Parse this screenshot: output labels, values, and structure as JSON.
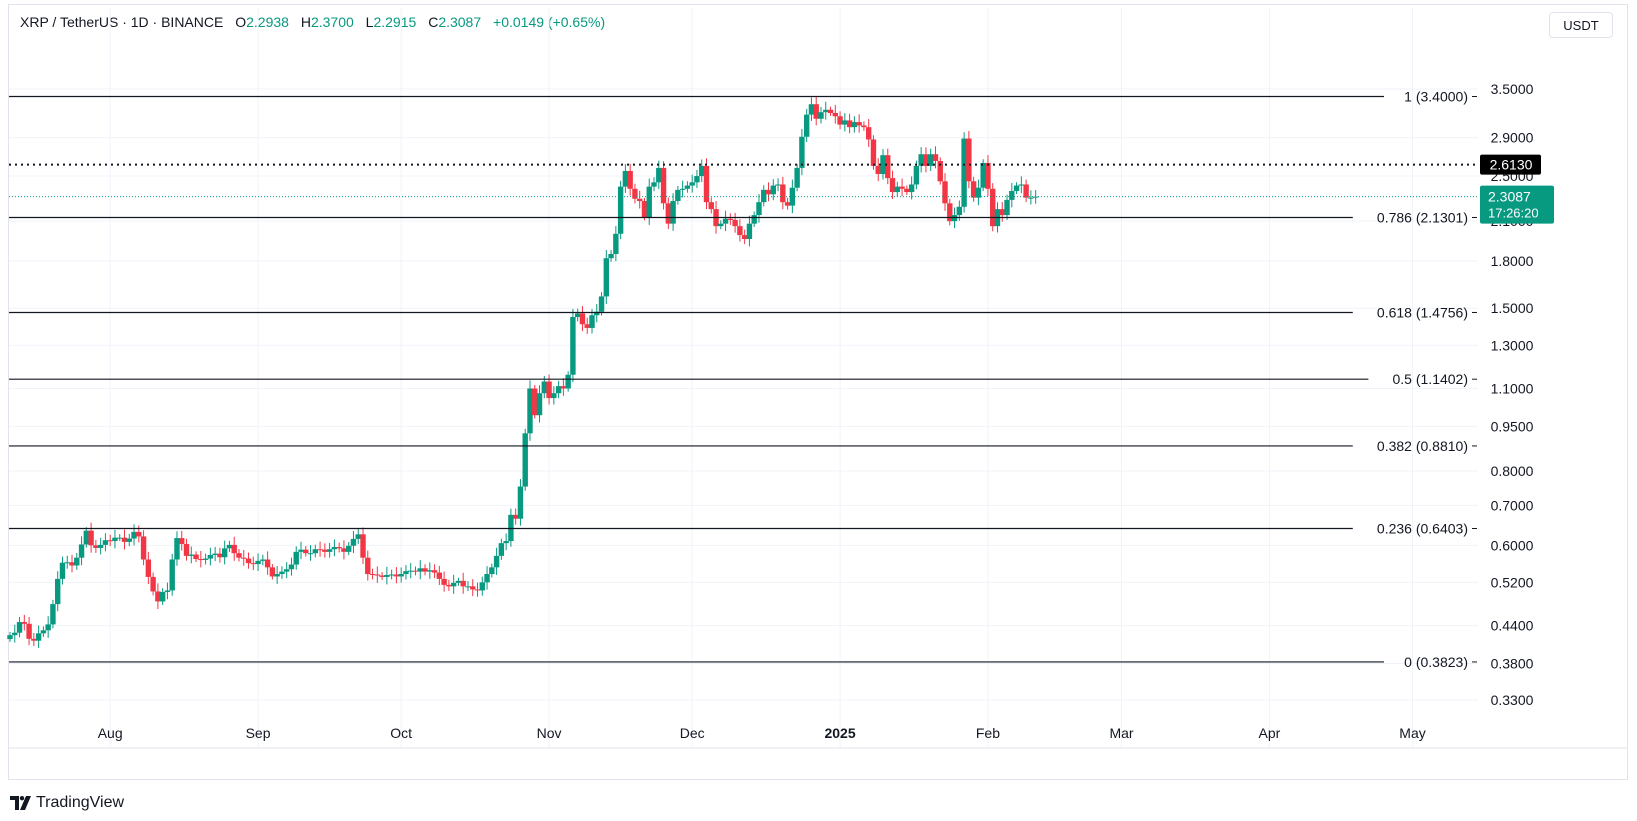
{
  "header": {
    "symbol": "XRP / TetherUS · 1D · BINANCE",
    "open_label": "O",
    "open": "2.2938",
    "high_label": "H",
    "high": "2.3700",
    "low_label": "L",
    "low": "2.2915",
    "close_label": "C",
    "close": "2.3087",
    "change": "+0.0149 (+0.65%)"
  },
  "currency_button": "USDT",
  "brand": "TradingView",
  "colors": {
    "up": "#089981",
    "down": "#f23645",
    "grid": "#f0f3fa",
    "line": "#131722"
  },
  "chart_data": {
    "type": "candlestick",
    "scale": "log",
    "x_range": [
      "2024-07-11",
      "2025-05-12"
    ],
    "y_ticks": [
      0.33,
      0.38,
      0.44,
      0.52,
      0.6,
      0.7,
      0.8,
      0.95,
      1.1,
      1.3,
      1.5,
      1.8,
      2.1,
      2.5,
      2.9,
      3.5
    ],
    "y_tick_labels": [
      "0.3300",
      "0.3800",
      "0.4400",
      "0.5200",
      "0.6000",
      "0.7000",
      "0.8000",
      "0.9500",
      "1.1000",
      "1.3000",
      "1.5000",
      "1.8000",
      "2.1000",
      "2.5000",
      "2.9000",
      "3.5000"
    ],
    "x_ticks": [
      {
        "date": "2024-08-01",
        "label": "Aug",
        "bold": false
      },
      {
        "date": "2024-09-01",
        "label": "Sep",
        "bold": false
      },
      {
        "date": "2024-10-01",
        "label": "Oct",
        "bold": false
      },
      {
        "date": "2024-11-01",
        "label": "Nov",
        "bold": false
      },
      {
        "date": "2024-12-01",
        "label": "Dec",
        "bold": false
      },
      {
        "date": "2025-01-01",
        "label": "2025",
        "bold": true
      },
      {
        "date": "2025-02-01",
        "label": "Feb",
        "bold": false
      },
      {
        "date": "2025-03-01",
        "label": "Mar",
        "bold": false
      },
      {
        "date": "2025-04-01",
        "label": "Apr",
        "bold": false
      },
      {
        "date": "2025-05-01",
        "label": "May",
        "bold": false
      }
    ],
    "fib_levels": [
      {
        "ratio": "1",
        "price": 3.4,
        "label": "1 (3.4000)"
      },
      {
        "ratio": "0.786",
        "price": 2.1301,
        "label": "0.786 (2.1301)"
      },
      {
        "ratio": "0.618",
        "price": 1.4756,
        "label": "0.618 (1.4756)"
      },
      {
        "ratio": "0.5",
        "price": 1.1402,
        "label": "0.5 (1.1402)"
      },
      {
        "ratio": "0.382",
        "price": 0.881,
        "label": "0.382 (0.8810)"
      },
      {
        "ratio": "0.236",
        "price": 0.6403,
        "label": "0.236 (0.6403)"
      },
      {
        "ratio": "0",
        "price": 0.3823,
        "label": "0 (0.3823)"
      }
    ],
    "horizontal_line": {
      "price": 2.613,
      "label": "2.6130"
    },
    "last_price": {
      "price": 2.3087,
      "label": "2.3087",
      "countdown": "17:26:20"
    },
    "start_date": "2024-07-11",
    "closes": [
      0.424,
      0.428,
      0.446,
      0.443,
      0.418,
      0.415,
      0.427,
      0.432,
      0.442,
      0.478,
      0.527,
      0.561,
      0.562,
      0.555,
      0.572,
      0.602,
      0.635,
      0.6,
      0.594,
      0.601,
      0.612,
      0.61,
      0.618,
      0.618,
      0.608,
      0.616,
      0.632,
      0.621,
      0.568,
      0.531,
      0.502,
      0.483,
      0.501,
      0.504,
      0.568,
      0.617,
      0.603,
      0.576,
      0.579,
      0.569,
      0.567,
      0.57,
      0.578,
      0.581,
      0.573,
      0.593,
      0.601,
      0.582,
      0.572,
      0.57,
      0.56,
      0.558,
      0.565,
      0.568,
      0.551,
      0.532,
      0.537,
      0.542,
      0.547,
      0.557,
      0.585,
      0.59,
      0.582,
      0.582,
      0.591,
      0.59,
      0.585,
      0.591,
      0.596,
      0.593,
      0.585,
      0.599,
      0.615,
      0.626,
      0.572,
      0.537,
      0.536,
      0.534,
      0.531,
      0.535,
      0.536,
      0.532,
      0.537,
      0.543,
      0.544,
      0.542,
      0.549,
      0.542,
      0.545,
      0.54,
      0.527,
      0.515,
      0.512,
      0.519,
      0.523,
      0.512,
      0.512,
      0.506,
      0.504,
      0.52,
      0.537,
      0.551,
      0.576,
      0.605,
      0.61,
      0.675,
      0.665,
      0.753,
      0.925,
      1.1,
      0.992,
      1.08,
      1.13,
      1.06,
      1.08,
      1.11,
      1.1,
      1.16,
      1.45,
      1.47,
      1.41,
      1.39,
      1.46,
      1.48,
      1.57,
      1.82,
      1.85,
      2.0,
      2.4,
      2.55,
      2.38,
      2.29,
      2.27,
      2.13,
      2.4,
      2.44,
      2.58,
      2.25,
      2.08,
      2.27,
      2.37,
      2.38,
      2.41,
      2.44,
      2.5,
      2.6,
      2.26,
      2.2,
      2.06,
      2.08,
      2.12,
      2.11,
      2.06,
      1.99,
      1.96,
      2.08,
      2.15,
      2.26,
      2.37,
      2.33,
      2.41,
      2.42,
      2.26,
      2.23,
      2.39,
      2.58,
      2.91,
      3.17,
      3.3,
      3.12,
      3.2,
      3.23,
      3.19,
      3.15,
      3.05,
      3.1,
      3.02,
      3.08,
      3.04,
      3.02,
      2.88,
      2.6,
      2.52,
      2.71,
      2.48,
      2.35,
      2.4,
      2.38,
      2.35,
      2.42,
      2.6,
      2.72,
      2.6,
      2.72,
      2.65,
      2.45,
      2.25,
      2.1,
      2.15,
      2.22,
      2.89,
      2.45,
      2.3,
      2.39,
      2.63,
      2.38,
      2.06,
      2.2,
      2.15,
      2.28,
      2.36,
      2.41,
      2.42,
      2.3,
      2.3,
      2.309
    ]
  }
}
